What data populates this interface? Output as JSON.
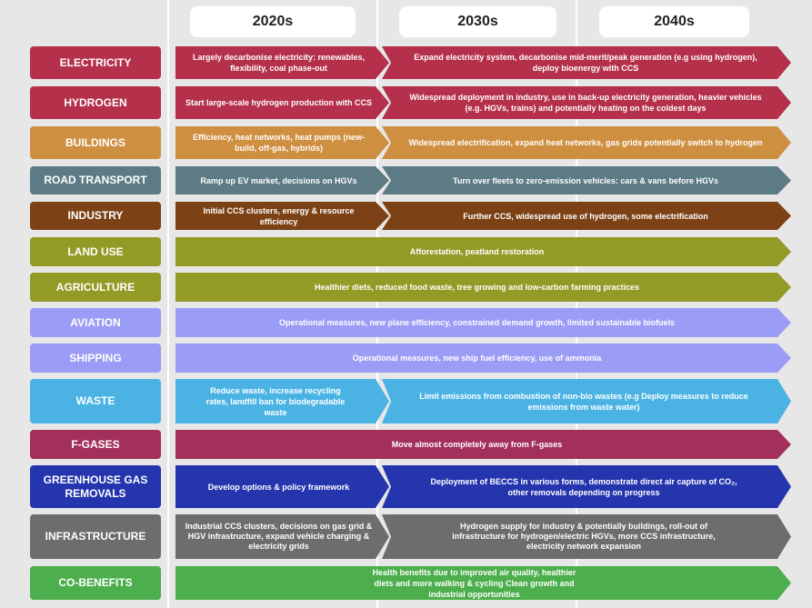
{
  "columns": [
    "2020s",
    "2030s",
    "2040s"
  ],
  "colors": {
    "electricity": "#b5304a",
    "hydrogen": "#b5304a",
    "buildings": "#cf8f41",
    "road_transport": "#5c7b85",
    "industry": "#7c4216",
    "land_use": "#949a26",
    "agriculture": "#949a26",
    "aviation": "#9b9cf5",
    "shipping": "#9b9cf5",
    "waste": "#4bb3e4",
    "f_gases": "#a3305b",
    "ggr": "#2535ad",
    "infrastructure": "#6d6d6d",
    "co_benefits": "#4cae4c"
  },
  "rows": {
    "electricity": {
      "label": "ELECTRICITY",
      "a": "Largely decarbonise electricity: renewables, flexibility, coal phase-out",
      "b": "Expand electricity system, decarbonise mid-merit/peak generation (e.g using hydrogen), deploy bioenergy with CCS"
    },
    "hydrogen": {
      "label": "HYDROGEN",
      "a": "Start large-scale hydrogen production with CCS",
      "b": "Widespread deployment in industry, use in back-up electricity generation, heavier vehicles (e.g. HGVs, trains) and potentially heating on the coldest days"
    },
    "buildings": {
      "label": "BUILDINGS",
      "a": "Efficiency, heat networks, heat pumps (new-build, off-gas, hybrids)",
      "b": "Widespread electrification, expand heat networks, gas grids potentially switch to hydrogen"
    },
    "road_transport": {
      "label": "ROAD TRANSPORT",
      "a": "Ramp up EV market, decisions on HGVs",
      "b": "Turn over fleets to zero-emission vehicles:  cars & vans  before HGVs"
    },
    "industry": {
      "label": "INDUSTRY",
      "a": "Initial CCS clusters, energy & resource efficiency",
      "b": "Further CCS, widespread use of hydrogen, some electrification"
    },
    "land_use": {
      "label": "LAND USE",
      "a": "Afforestation, peatland restoration"
    },
    "agriculture": {
      "label": "AGRICULTURE",
      "a": "Healthier diets, reduced food waste, tree growing and low-carbon farming practices"
    },
    "aviation": {
      "label": "AVIATION",
      "a": "Operational measures, new plane efficiency, constrained demand growth, limited sustainable biofuels"
    },
    "shipping": {
      "label": "SHIPPING",
      "a": "Operational measures, new ship fuel efficiency, use of ammonia"
    },
    "waste": {
      "label": "WASTE",
      "a": "Reduce waste, increase recycling rates, landfill ban for biodegradable waste",
      "b": "Limit emissions from combustion of non-bio wastes (e.g Deploy measures to reduce emissions from waste water)"
    },
    "f_gases": {
      "label": "F-GASES",
      "a": "Move almost completely away from F-gases"
    },
    "ggr": {
      "label": "GREENHOUSE GAS REMOVALS",
      "a": "Develop options & policy framework",
      "b": "Deployment of BECCS in various forms, demonstrate direct air capture of CO₂, other removals depending on progress"
    },
    "infrastructure": {
      "label": "INFRASTRUCTURE",
      "a": "Industrial CCS clusters, decisions on gas grid & HGV infrastructure, expand vehicle charging & electricity grids",
      "b": "Hydrogen supply for industry & potentially buildings, roll-out of infrastructure for hydrogen/electric HGVs, more CCS infrastructure, electricity network expansion"
    },
    "co_benefits": {
      "label": "CO-BENEFITS",
      "a": "Health benefits due to improved air quality, healthier diets and more walking & cycling Clean growth and industrial opportunities"
    }
  }
}
